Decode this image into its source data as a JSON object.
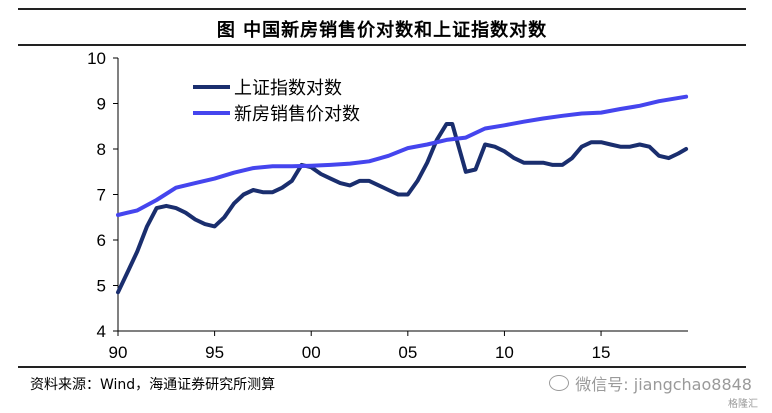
{
  "title": "图  中国新房销售价对数和上证指数对数",
  "source": "资料来源：Wind，海通证券研究所测算",
  "watermark": {
    "text": "微信号: jiangchao8848",
    "sub": "格隆汇",
    "logo_icon": "wechat-icon"
  },
  "colors": {
    "shanghai": "#1a2e6e",
    "housing": "#4545ee"
  },
  "chart_data": {
    "type": "line",
    "title": "图  中国新房销售价对数和上证指数对数",
    "xlabel": "",
    "ylabel": "",
    "xlim": [
      1990,
      2019.5
    ],
    "ylim": [
      4,
      10
    ],
    "grid": false,
    "legend_position": "top-left",
    "x_tick_values": [
      1990,
      1995,
      2000,
      2005,
      2010,
      2015
    ],
    "x_tick_labels": [
      "90",
      "95",
      "00",
      "05",
      "10",
      "15"
    ],
    "y_ticks": [
      4,
      5,
      6,
      7,
      8,
      9,
      10
    ],
    "series": [
      {
        "name": "上证指数对数",
        "color": "#1a2e6e",
        "x": [
          1990.0,
          1990.5,
          1991.0,
          1991.5,
          1992.0,
          1992.5,
          1993.0,
          1993.5,
          1994.0,
          1994.5,
          1995.0,
          1995.5,
          1996.0,
          1996.5,
          1997.0,
          1997.5,
          1998.0,
          1998.5,
          1999.0,
          1999.5,
          2000.0,
          2000.5,
          2001.0,
          2001.5,
          2002.0,
          2002.5,
          2003.0,
          2003.5,
          2004.0,
          2004.5,
          2005.0,
          2005.5,
          2006.0,
          2006.5,
          2007.0,
          2007.3,
          2007.7,
          2008.0,
          2008.5,
          2009.0,
          2009.5,
          2010.0,
          2010.5,
          2011.0,
          2011.5,
          2012.0,
          2012.5,
          2013.0,
          2013.5,
          2014.0,
          2014.5,
          2015.0,
          2015.5,
          2016.0,
          2016.5,
          2017.0,
          2017.5,
          2018.0,
          2018.5,
          2019.0,
          2019.4
        ],
        "values": [
          4.85,
          5.3,
          5.75,
          6.3,
          6.7,
          6.75,
          6.7,
          6.6,
          6.45,
          6.35,
          6.3,
          6.5,
          6.8,
          7.0,
          7.1,
          7.05,
          7.05,
          7.15,
          7.3,
          7.65,
          7.6,
          7.45,
          7.35,
          7.25,
          7.2,
          7.3,
          7.3,
          7.2,
          7.1,
          7.0,
          7.0,
          7.3,
          7.7,
          8.2,
          8.55,
          8.55,
          7.95,
          7.5,
          7.55,
          8.1,
          8.05,
          7.95,
          7.8,
          7.7,
          7.7,
          7.7,
          7.65,
          7.65,
          7.8,
          8.05,
          8.15,
          8.15,
          8.1,
          8.05,
          8.05,
          8.1,
          8.05,
          7.85,
          7.8,
          7.9,
          8.0
        ]
      },
      {
        "name": "新房销售价对数",
        "color": "#4545ee",
        "x": [
          1990,
          1991,
          1992,
          1993,
          1994,
          1995,
          1996,
          1997,
          1998,
          1999,
          2000,
          2001,
          2002,
          2003,
          2004,
          2005,
          2006,
          2007,
          2008,
          2009,
          2010,
          2011,
          2012,
          2013,
          2014,
          2015,
          2016,
          2017,
          2018,
          2019.4
        ],
        "values": [
          6.55,
          6.65,
          6.88,
          7.15,
          7.25,
          7.35,
          7.48,
          7.58,
          7.62,
          7.62,
          7.63,
          7.65,
          7.68,
          7.73,
          7.85,
          8.02,
          8.1,
          8.2,
          8.25,
          8.45,
          8.52,
          8.6,
          8.67,
          8.73,
          8.78,
          8.8,
          8.88,
          8.95,
          9.05,
          9.15
        ]
      }
    ]
  }
}
